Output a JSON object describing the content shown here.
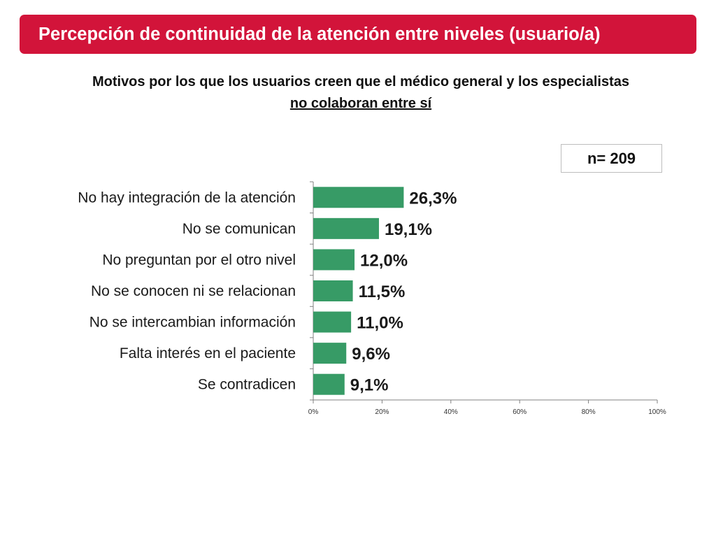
{
  "header": {
    "title": "Percepción de continuidad de la atención entre niveles (usuario/a)",
    "background_color": "#d2143a"
  },
  "subtitle": {
    "line1": "Motivos por los que los usuarios creen que el médico general y los especialistas",
    "line2": "no colaboran entre sí"
  },
  "sample": {
    "label": "n= 209"
  },
  "chart_data": {
    "type": "bar",
    "orientation": "horizontal",
    "categories": [
      "No hay integración de la atención",
      "No se comunican",
      "No preguntan por el otro nivel",
      "No se conocen ni se relacionan",
      "No se intercambian información",
      "Falta interés en el paciente",
      "Se contradicen"
    ],
    "values": [
      26.3,
      19.1,
      12.0,
      11.5,
      11.0,
      9.6,
      9.1
    ],
    "value_labels": [
      "26,3%",
      "19,1%",
      "12,0%",
      "11,5%",
      "11,0%",
      "9,6%",
      "9,1%"
    ],
    "xlim": [
      0,
      100
    ],
    "xticks": [
      0,
      20,
      40,
      60,
      80,
      100
    ],
    "xtick_labels": [
      "0%",
      "20%",
      "40%",
      "60%",
      "80%",
      "100%"
    ],
    "bar_color": "#379b66",
    "grid": false,
    "legend": "none"
  }
}
